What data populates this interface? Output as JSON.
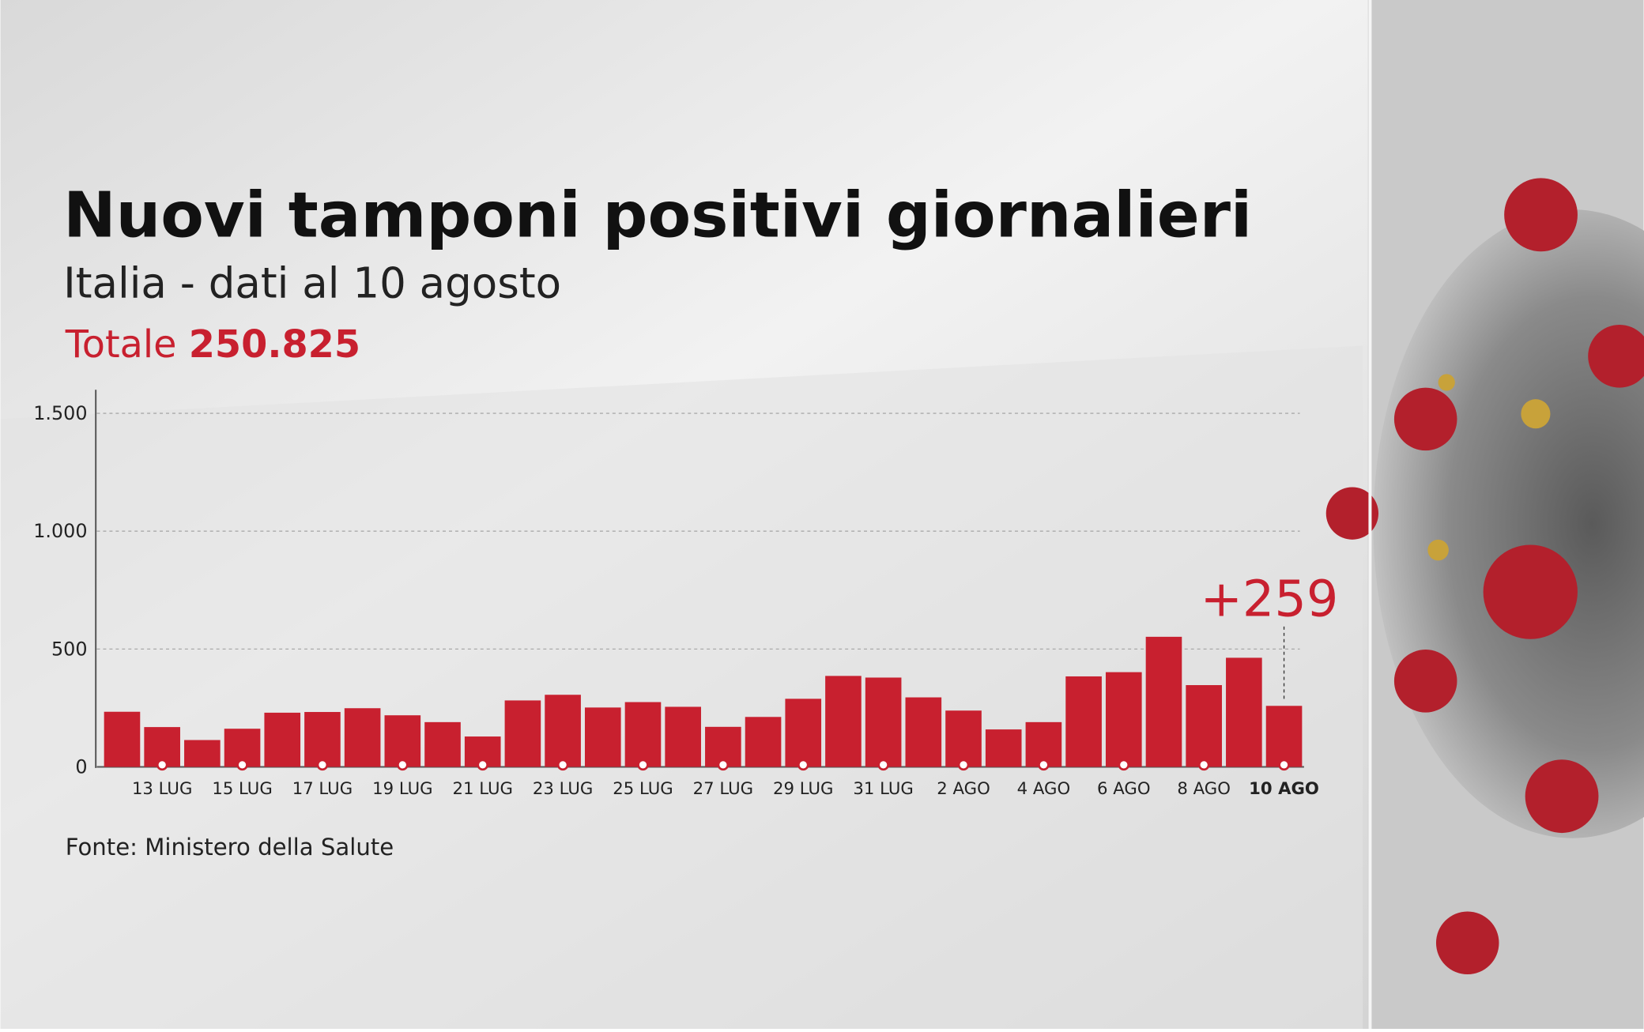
{
  "chart_data": {
    "type": "bar",
    "title": "Nuovi tamponi positivi giornalieri",
    "subtitle": "Italia - dati al 10 agosto",
    "total_label": "Totale",
    "total_value": "250.825",
    "source": "Fonte: Ministero della Salute",
    "categories": [
      null,
      "13 LUG",
      null,
      "15 LUG",
      null,
      "17 LUG",
      null,
      "19 LUG",
      null,
      "21 LUG",
      null,
      "23 LUG",
      null,
      "25 LUG",
      null,
      "27 LUG",
      null,
      "29 LUG",
      null,
      "31 LUG",
      null,
      "2 AGO",
      null,
      "4 AGO",
      null,
      "6 AGO",
      null,
      "8 AGO",
      null,
      "10 AGO"
    ],
    "values": [
      234,
      169,
      114,
      162,
      230,
      233,
      249,
      219,
      190,
      129,
      282,
      306,
      252,
      275,
      255,
      170,
      212,
      289,
      386,
      379,
      295,
      239,
      159,
      190,
      384,
      402,
      552,
      347,
      463,
      259
    ],
    "value_labels": [
      null,
      null,
      null,
      null,
      null,
      null,
      null,
      null,
      null,
      null,
      null,
      null,
      null,
      null,
      null,
      null,
      null,
      null,
      null,
      null,
      null,
      null,
      null,
      null,
      null,
      null,
      null,
      null,
      null,
      "+259"
    ],
    "color": "#c8202f",
    "ylim": [
      0,
      1600
    ],
    "yticks": [
      0,
      500,
      {
        "value": 1000,
        "label": "1.000"
      },
      {
        "value": 1500,
        "label": "1.500"
      }
    ],
    "grid": true
  }
}
